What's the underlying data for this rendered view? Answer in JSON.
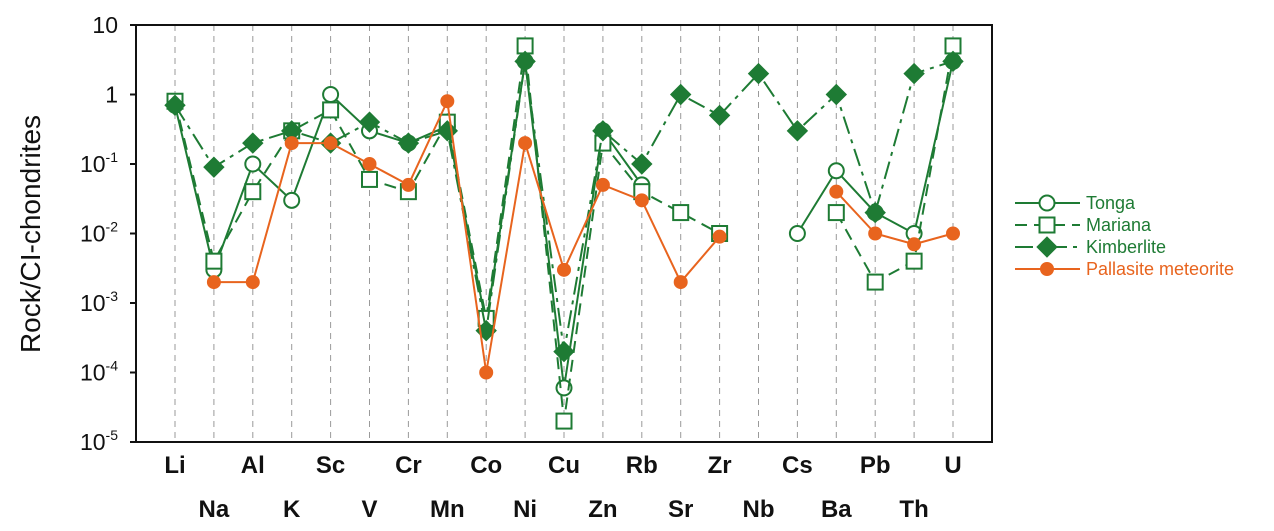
{
  "chart_data": {
    "type": "line",
    "ylabel": "Rock/CI-chondrites",
    "yscale": "log",
    "ylim": [
      1e-05,
      10
    ],
    "yticks": [
      {
        "value": 1e-05,
        "base": "10",
        "exp": "-5"
      },
      {
        "value": 0.0001,
        "base": "10",
        "exp": "-4"
      },
      {
        "value": 0.001,
        "base": "10",
        "exp": "-3"
      },
      {
        "value": 0.01,
        "base": "10",
        "exp": "-2"
      },
      {
        "value": 0.1,
        "base": "10",
        "exp": "-1"
      },
      {
        "value": 1,
        "base": "1",
        "exp": ""
      },
      {
        "value": 10,
        "base": "10",
        "exp": ""
      }
    ],
    "grid": "vertical dashed",
    "legend_position": "right",
    "categories": [
      "Li",
      "Na",
      "Al",
      "K",
      "Sc",
      "V",
      "Cr",
      "Mn",
      "Co",
      "Ni",
      "Cu",
      "Zn",
      "Rb",
      "Sr",
      "Zr",
      "Nb",
      "Cs",
      "Ba",
      "Pb",
      "Th",
      "U"
    ],
    "series": [
      {
        "name": "Tonga",
        "color": "#1e7b34",
        "marker": "circle-open",
        "dash": "solid",
        "values": [
          0.7,
          0.003,
          0.1,
          0.03,
          1,
          0.3,
          0.2,
          0.35,
          0.0005,
          3,
          6e-05,
          0.3,
          0.05,
          null,
          null,
          null,
          0.01,
          0.08,
          0.02,
          0.01,
          3
        ]
      },
      {
        "name": "Mariana",
        "color": "#1e7b34",
        "marker": "square-open",
        "dash": "dashed",
        "values": [
          0.8,
          0.004,
          0.04,
          0.3,
          0.6,
          0.06,
          0.04,
          0.4,
          0.0006,
          5,
          2e-05,
          0.2,
          0.04,
          0.02,
          0.01,
          null,
          null,
          0.02,
          0.002,
          0.004,
          5
        ]
      },
      {
        "name": "Kimberlite",
        "color": "#1e7b34",
        "marker": "diamond-filled",
        "dash": "dashdot",
        "values": [
          0.7,
          0.09,
          0.2,
          0.3,
          0.2,
          0.4,
          0.2,
          0.3,
          0.0004,
          3,
          0.0002,
          0.3,
          0.1,
          1,
          0.5,
          2,
          0.3,
          1,
          0.02,
          2,
          3
        ]
      },
      {
        "name": "Pallasite meteorite",
        "color": "#e8641e",
        "marker": "circle-filled",
        "dash": "solid",
        "values": [
          null,
          0.002,
          0.002,
          0.2,
          0.2,
          0.1,
          0.05,
          0.8,
          0.0001,
          0.2,
          0.003,
          0.05,
          0.03,
          0.002,
          0.009,
          null,
          null,
          0.04,
          0.01,
          0.007,
          0.01
        ]
      }
    ]
  }
}
